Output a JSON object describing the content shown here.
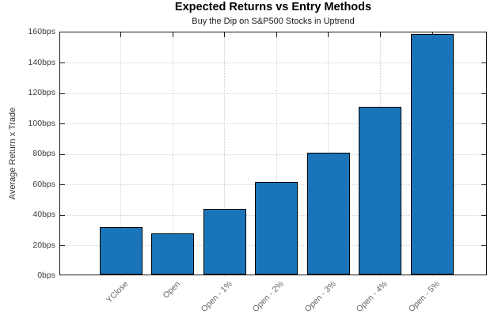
{
  "chart_data": {
    "type": "bar",
    "title": "Expected Returns vs Entry Methods",
    "subtitle": "Buy the Dip on S&P500 Stocks in Uptrend",
    "ylabel": "Average Return x Trade",
    "xlabel": "",
    "unit": "bps",
    "categories": [
      "YClose",
      "Open",
      "Open - 1%",
      "Open - 2%",
      "Open - 3%",
      "Open - 4%",
      "Open - 5%"
    ],
    "values": [
      31,
      27,
      43,
      61,
      80,
      110,
      158
    ],
    "ylim": [
      0,
      160
    ],
    "ytick_step": 20,
    "ytick_labels": [
      "0bps",
      "20bps",
      "40bps",
      "60bps",
      "80bps",
      "100bps",
      "120bps",
      "140bps",
      "160bps"
    ],
    "grid": {
      "horizontal": true,
      "vertical": true,
      "style": "dotted"
    },
    "legend": "none",
    "colors": {
      "bar_fill": "#1a74b9",
      "bar_edge": "#000000",
      "axis": "#1a1a1a",
      "grid": "#d2d2d2",
      "title": "#000000",
      "y_tick_label": "#3c3c3c",
      "x_tick_label": "#666666"
    }
  }
}
